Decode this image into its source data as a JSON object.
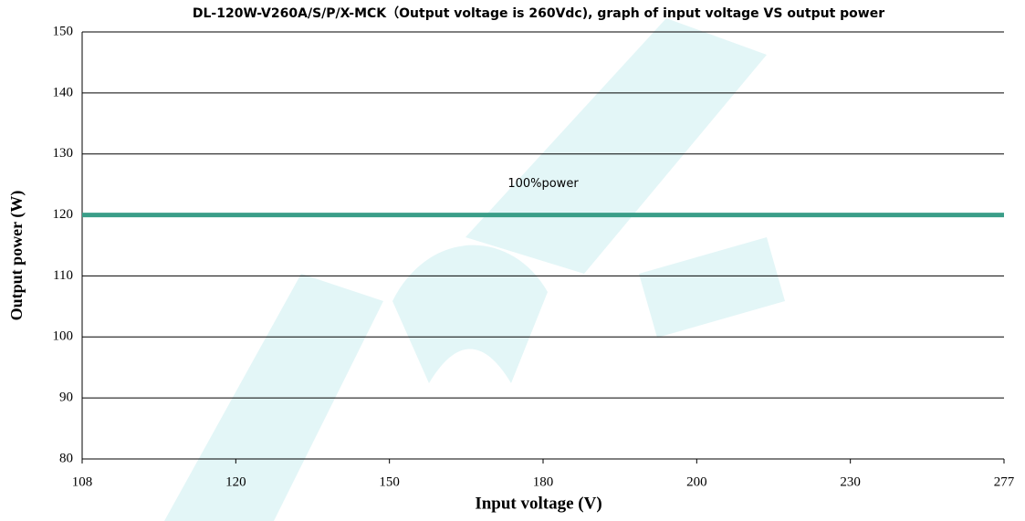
{
  "chart_data": {
    "type": "line",
    "title": "DL-120W-V260A/S/P/X-MCK（Output voltage is 260Vdc), graph of input voltage VS output power",
    "x_label": "Input voltage (V)",
    "y_label": "Output power (W)",
    "categories": [
      "108",
      "120",
      "150",
      "180",
      "200",
      "230",
      "277"
    ],
    "series": [
      {
        "name": "100%power",
        "color": "#3a9e88",
        "values": [
          120,
          120,
          120,
          120,
          120,
          120,
          120
        ]
      }
    ],
    "ylim": [
      80,
      150
    ],
    "yticks": [
      80,
      90,
      100,
      110,
      120,
      130,
      140,
      150
    ],
    "grid": true
  }
}
